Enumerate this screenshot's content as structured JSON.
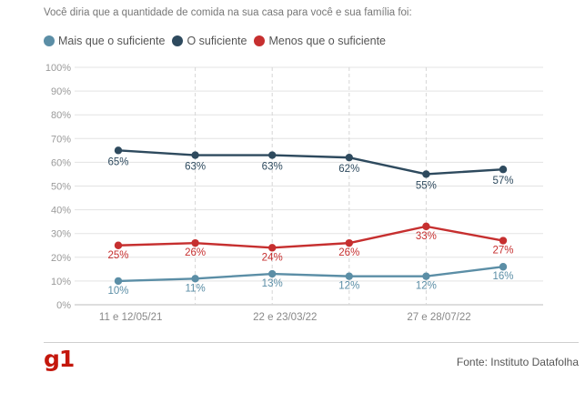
{
  "question": "Você diria que a quantidade de comida na sua casa para você e sua família foi:",
  "legend": [
    {
      "label": "Mais que o suficiente",
      "color": "#5b8ea6"
    },
    {
      "label": "O suficiente",
      "color": "#2e4a5e"
    },
    {
      "label": "Menos que o suficiente",
      "color": "#c62f2f"
    }
  ],
  "chart_data": {
    "type": "line",
    "x_points": 6,
    "x_tick_labels": [
      {
        "label": "11 e 12/05/21",
        "index": 0.2
      },
      {
        "label": "22 e 23/03/22",
        "index": 2.2
      },
      {
        "label": "27 e 28/07/22",
        "index": 4.2
      }
    ],
    "y_ticks": [
      "0%",
      "10%",
      "20%",
      "30%",
      "40%",
      "50%",
      "60%",
      "70%",
      "80%",
      "90%",
      "100%"
    ],
    "ylim": [
      0,
      100
    ],
    "grid": true,
    "series": [
      {
        "name": "Mais que o suficiente",
        "color": "#5b8ea6",
        "values": [
          10,
          11,
          13,
          12,
          12,
          16
        ],
        "labels": [
          "10%",
          "11%",
          "13%",
          "12%",
          "12%",
          "16%"
        ]
      },
      {
        "name": "O suficiente",
        "color": "#2e4a5e",
        "values": [
          65,
          63,
          63,
          62,
          55,
          57
        ],
        "labels": [
          "65%",
          "63%",
          "63%",
          "62%",
          "55%",
          "57%"
        ]
      },
      {
        "name": "Menos que o suficiente",
        "color": "#c62f2f",
        "values": [
          25,
          26,
          24,
          26,
          33,
          27
        ],
        "labels": [
          "25%",
          "26%",
          "24%",
          "26%",
          "33%",
          "27%"
        ]
      }
    ]
  },
  "footer": {
    "logo": "g1",
    "source": "Fonte: Instituto Datafolha"
  }
}
